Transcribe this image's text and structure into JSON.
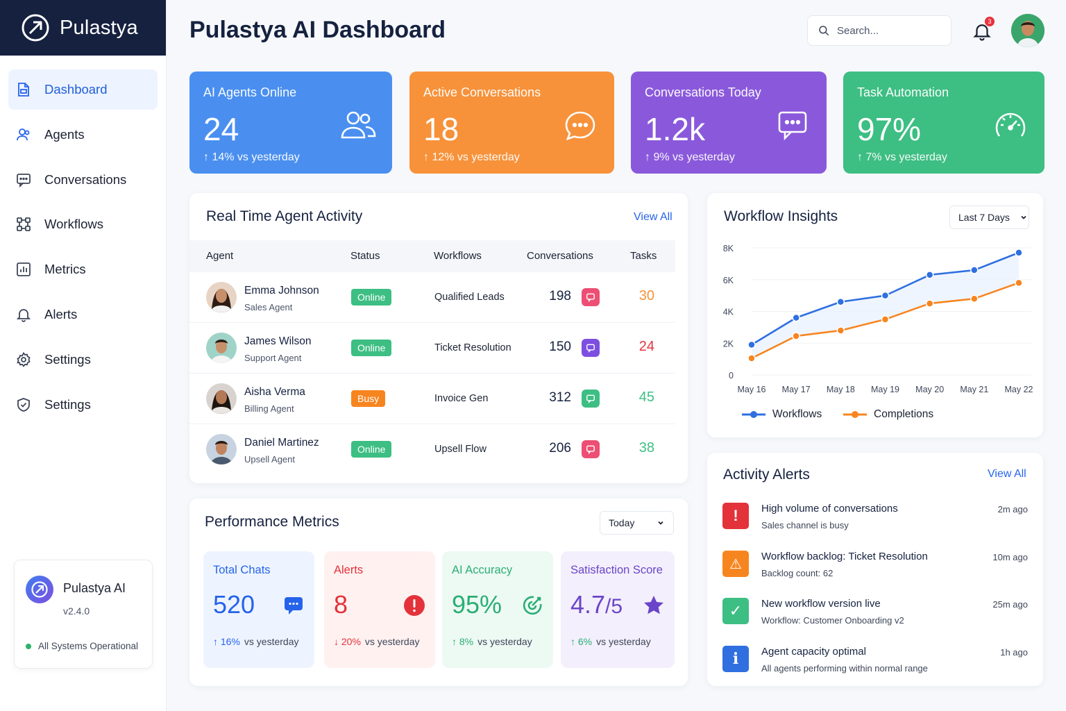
{
  "brand": {
    "name": "Pulastya"
  },
  "page": {
    "title": "Pulastya AI Dashboard"
  },
  "header": {
    "search_placeholder": "Search...",
    "notifications_count": "3"
  },
  "sidebar": {
    "items": [
      {
        "label": "Dashboard",
        "icon": "file-icon",
        "active": true
      },
      {
        "label": "Agents",
        "icon": "users-icon"
      },
      {
        "label": "Conversations",
        "icon": "chat-icon"
      },
      {
        "label": "Workflows",
        "icon": "workflow-icon"
      },
      {
        "label": "Metrics",
        "icon": "bar-chart-icon"
      },
      {
        "label": "Alerts",
        "icon": "bell-icon"
      },
      {
        "label": "Settings",
        "icon": "gear-icon"
      },
      {
        "label": "Settings",
        "icon": "shield-icon"
      }
    ],
    "system": {
      "name": "Pulastya AI",
      "version": "v2.4.0",
      "status": "All Systems Operational"
    }
  },
  "kpis": [
    {
      "title": "AI Agents Online",
      "value": "24",
      "change": "↑ 14% vs yesterday",
      "color": "#4a8ff0",
      "icon": "users-icon"
    },
    {
      "title": "Active Conversations",
      "value": "18",
      "change": "↑ 12% vs yesterday",
      "color": "#f7923a",
      "icon": "chat-bubble-icon"
    },
    {
      "title": "Conversations Today",
      "value": "1.2k",
      "change": "↑ 9% vs yesterday",
      "color": "#8a59db",
      "icon": "message-square-icon"
    },
    {
      "title": "Task Automation",
      "value": "97%",
      "change": "↑ 7% vs yesterday",
      "color": "#3dbe83",
      "icon": "gauge-icon"
    }
  ],
  "activity": {
    "title": "Real Time Agent Activity",
    "view_all": "View All",
    "columns": [
      "Agent",
      "Status",
      "Workflows",
      "Conversations",
      "Tasks"
    ],
    "rows": [
      {
        "name": "Emma Johnson",
        "role": "Sales Agent",
        "status": "Online",
        "workflow": "Qualified Leads",
        "conversations": "198",
        "tasks": "30",
        "task_color": "#f7923a",
        "chat_color": "#ec4f73"
      },
      {
        "name": "James Wilson",
        "role": "Support Agent",
        "status": "Online",
        "workflow": "Ticket Resolution",
        "conversations": "150",
        "tasks": "24",
        "task_color": "#e8323c",
        "chat_color": "#7c4fe0"
      },
      {
        "name": "Aisha Verma",
        "role": "Billing Agent",
        "status": "Busy",
        "workflow": "Invoice Gen",
        "conversations": "312",
        "tasks": "45",
        "task_color": "#3dbe83",
        "chat_color": "#3dbe83"
      },
      {
        "name": "Daniel Martinez",
        "role": "Upsell Agent",
        "status": "Online",
        "workflow": "Upsell Flow",
        "conversations": "206",
        "tasks": "38",
        "task_color": "#3dbe83",
        "chat_color": "#ec4f73"
      }
    ]
  },
  "insights": {
    "title": "Workflow Insights",
    "range": "Last 7 Days",
    "legend": [
      "Workflows",
      "Completions"
    ]
  },
  "chart_data": {
    "type": "line",
    "title": "",
    "xlabel": "",
    "ylabel": "",
    "x": [
      "May 16",
      "May 17",
      "May 18",
      "May 19",
      "May 20",
      "May 21",
      "May 22"
    ],
    "yticks": [
      "0",
      "2K",
      "4K",
      "6K",
      "8K"
    ],
    "ylim": [
      0,
      8000
    ],
    "series": [
      {
        "name": "Workflows",
        "color": "#2f6fe0",
        "values": [
          1900,
          3600,
          4600,
          5000,
          6300,
          6600,
          7700
        ]
      },
      {
        "name": "Completions",
        "color": "#f7851f",
        "values": [
          1050,
          2450,
          2800,
          3500,
          4500,
          4800,
          5800
        ]
      }
    ],
    "grid": "horizontal",
    "legend_position": "bottom"
  },
  "performance": {
    "title": "Performance Metrics",
    "range": "Today",
    "metrics": [
      {
        "title": "Total Chats",
        "value": "520",
        "change_value": "↑ 16%",
        "change_text": "vs yesterday",
        "color": "#2563eb",
        "bg": "#eef4ff",
        "icon": "chat-bubble-icon"
      },
      {
        "title": "Alerts",
        "value": "8",
        "change_value": "↓ 20%",
        "change_text": "vs yesterday",
        "color": "#e3323a",
        "bg": "#fff1f0",
        "icon": "exclamation-icon"
      },
      {
        "title": "AI Accuracy",
        "value": "95%",
        "change_value": "↑ 8%",
        "change_text": "vs yesterday",
        "color": "#2aae74",
        "bg": "#edf9f3",
        "icon": "target-icon"
      },
      {
        "title": "Satisfaction Score",
        "value": "4.7",
        "value_suffix": "/5",
        "change_value": "↑ 6%",
        "change_text": "vs yesterday",
        "color": "#6a45c9",
        "bg": "#f3effc",
        "icon": "star-icon"
      }
    ]
  },
  "alerts": {
    "title": "Activity Alerts",
    "view_all": "View All",
    "items": [
      {
        "title": "High volume of conversations",
        "sub": "Sales channel is busy",
        "time": "2m ago",
        "color": "#e3323a",
        "icon": "exclamation-icon",
        "glyph": "!"
      },
      {
        "title": "Workflow backlog: Ticket Resolution",
        "sub": "Backlog count: 62",
        "time": "10m ago",
        "color": "#f7851f",
        "icon": "warning-icon",
        "glyph": "⚠"
      },
      {
        "title": "New workflow version live",
        "sub": "Workflow: Customer Onboarding v2",
        "time": "25m ago",
        "color": "#3dbe83",
        "icon": "check-icon",
        "glyph": "✓"
      },
      {
        "title": "Agent capacity optimal",
        "sub": "All agents performing within normal range",
        "time": "1h ago",
        "color": "#2f6fe0",
        "icon": "info-icon",
        "glyph": "i"
      }
    ]
  }
}
